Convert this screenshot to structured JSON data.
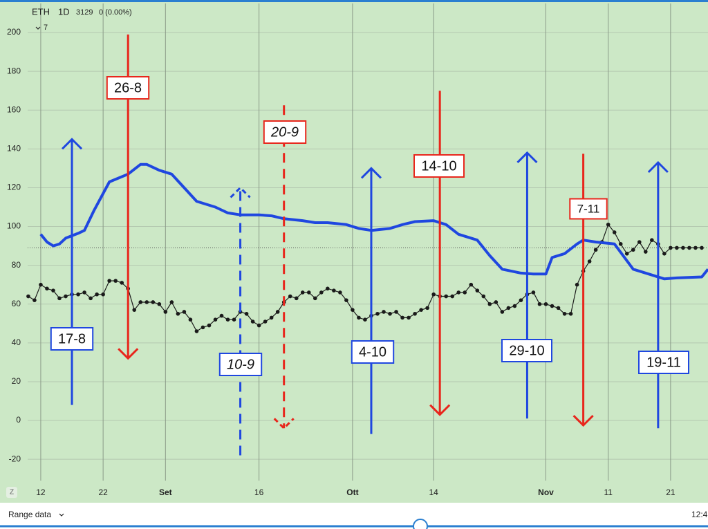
{
  "header": {
    "symbol": "ETH",
    "interval": "1D",
    "price": "3129",
    "change": "0 (0.00%)",
    "indicator_count": "7"
  },
  "footer": {
    "range_label": "Range data",
    "time": "12:4"
  },
  "chart_data": {
    "type": "line",
    "xlim": [
      9.9,
      119
    ],
    "ylim": [
      -31,
      215
    ],
    "xticks": [
      12,
      22,
      {
        "value": 32,
        "label": "Set"
      },
      {
        "value": 47,
        "label": "16"
      },
      {
        "value": 62,
        "label": "Ott"
      },
      {
        "value": 75,
        "label": "14"
      },
      {
        "value": 93,
        "label": "Nov"
      },
      {
        "value": 103,
        "label": "11"
      },
      {
        "value": 113,
        "label": "21"
      }
    ],
    "yticks": [
      -20,
      0,
      20,
      40,
      60,
      80,
      100,
      120,
      140,
      160,
      180,
      200
    ],
    "grid": true,
    "price_line": 89,
    "series": [
      {
        "color": "#1a1a1a",
        "markers": true,
        "x": [
          10,
          11,
          12,
          13,
          14,
          15,
          16,
          17,
          18,
          19,
          20,
          21,
          22,
          23,
          24,
          25,
          26,
          27,
          28,
          29,
          30,
          31,
          32,
          33,
          34,
          35,
          36,
          37,
          38,
          39,
          40,
          41,
          42,
          43,
          44,
          45,
          46,
          47,
          48,
          49,
          50,
          51,
          52,
          53,
          54,
          55,
          56,
          57,
          58,
          59,
          60,
          61,
          62,
          63,
          64,
          65,
          66,
          67,
          68,
          69,
          70,
          71,
          72,
          73,
          74,
          75,
          76,
          77,
          78,
          79,
          80,
          81,
          82,
          83,
          84,
          85,
          86,
          87,
          88,
          89,
          90,
          91,
          92,
          93,
          94,
          95,
          96,
          97,
          98,
          99,
          100,
          101,
          102,
          103,
          104,
          105,
          106,
          107,
          108,
          109,
          110,
          111,
          112,
          113,
          114,
          115,
          116,
          117,
          118
        ],
        "values": [
          64,
          62,
          70,
          68,
          67,
          63,
          64,
          65,
          65,
          66,
          63,
          65,
          65,
          72,
          72,
          71,
          68,
          57,
          61,
          61,
          61,
          60,
          56,
          61,
          55,
          56,
          52,
          46,
          48,
          49,
          52,
          54,
          52,
          52,
          56,
          55,
          51,
          49,
          51,
          53,
          56,
          61,
          64,
          63,
          66,
          66,
          63,
          66,
          68,
          67,
          66,
          62,
          57,
          53,
          52,
          54,
          55,
          56,
          55,
          56,
          53,
          53,
          55,
          57,
          58,
          65,
          64,
          64,
          64,
          66,
          66,
          70,
          67,
          64,
          60,
          61,
          56,
          58,
          59,
          62,
          65,
          66,
          60,
          60,
          59,
          58,
          55,
          55,
          70,
          77,
          82,
          88,
          92,
          101,
          97,
          91,
          86,
          88,
          92,
          87,
          93,
          91,
          86,
          89,
          89,
          89,
          89,
          89,
          89
        ]
      },
      {
        "color": "#1f47e0",
        "markers": false,
        "x": [
          12,
          13,
          14,
          15,
          16,
          18,
          19,
          20.5,
          23,
          26,
          28,
          29,
          31,
          33,
          35,
          37,
          40,
          42,
          44,
          47,
          49,
          51,
          54,
          56,
          58,
          61,
          63,
          65,
          68,
          70,
          72,
          75,
          77,
          79,
          82,
          84,
          86,
          89,
          91,
          93,
          94,
          96,
          98,
          99,
          101,
          104,
          107,
          110,
          112,
          114,
          118,
          119
        ],
        "values": [
          96,
          92,
          90,
          91,
          94,
          96.5,
          98,
          108,
          123,
          127,
          132,
          132,
          129,
          127,
          120,
          113,
          110,
          107,
          106,
          106,
          105.5,
          104,
          103,
          102,
          102,
          101,
          99,
          98,
          99,
          101,
          102.5,
          103,
          101,
          96,
          93,
          85,
          78,
          76,
          75.5,
          75.5,
          84,
          86,
          91,
          93,
          92,
          91,
          78,
          75,
          73,
          73.5,
          74,
          78
        ]
      }
    ],
    "annotations": [
      {
        "label": "17-8",
        "x": 17,
        "from": 8,
        "to": 145,
        "color": "#1f47e0",
        "dashed": false
      },
      {
        "label": "26-8",
        "x": 26,
        "from": 199,
        "to": 32,
        "color": "#e8261c",
        "dashed": false
      },
      {
        "label": "10-9",
        "x": 44,
        "from": -18,
        "to": 120,
        "color": "#1f47e0",
        "dashed": true
      },
      {
        "label": "20-9",
        "x": 51,
        "from": 162.5,
        "to": -4,
        "color": "#e8261c",
        "dashed": true
      },
      {
        "label": "4-10",
        "x": 65,
        "from": -7,
        "to": 130,
        "color": "#1f47e0",
        "dashed": false
      },
      {
        "label": "14-10",
        "x": 76,
        "from": 170,
        "to": 3,
        "color": "#e8261c",
        "dashed": false
      },
      {
        "label": "29-10",
        "x": 90,
        "from": 1,
        "to": 138,
        "color": "#1f47e0",
        "dashed": false
      },
      {
        "label": "7-11",
        "x": 99,
        "from": 137.5,
        "to": -2.5,
        "color": "#e8261c",
        "dashed": false
      },
      {
        "label": "19-11",
        "x": 111,
        "from": -4,
        "to": 133,
        "color": "#1f47e0",
        "dashed": false
      }
    ]
  }
}
